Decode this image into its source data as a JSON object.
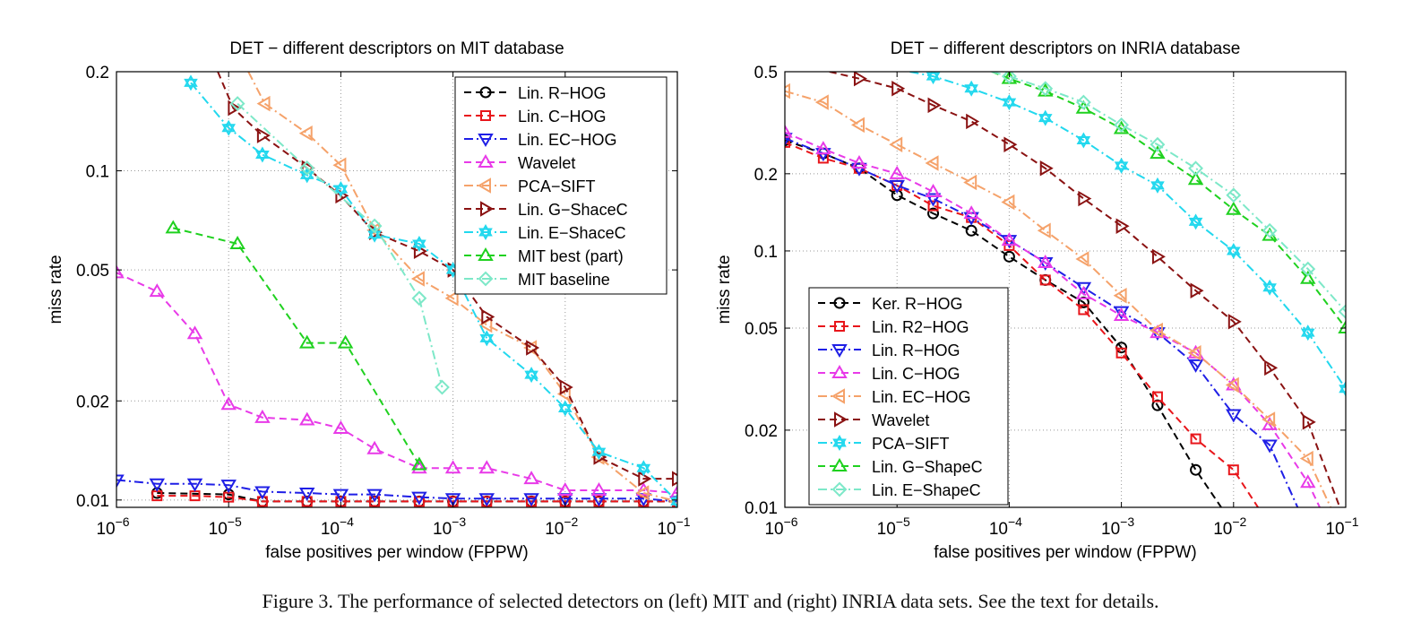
{
  "caption": "Figure 3. The performance of selected detectors on (left) MIT and (right) INRIA data sets. See the text for details.",
  "chart_data": [
    {
      "type": "line",
      "title": "DET − different descriptors on MIT database",
      "xlabel": "false positives per window (FPPW)",
      "ylabel": "miss rate",
      "xscale": "log",
      "yscale": "log",
      "xlim": [
        1e-06,
        0.1
      ],
      "ylim": [
        0.0095,
        0.2
      ],
      "xticks": [
        1e-06,
        1e-05,
        0.0001,
        0.001,
        0.01,
        0.1
      ],
      "xtick_exponents": [
        "−6",
        "−5",
        "−4",
        "−3",
        "−2",
        "−1"
      ],
      "yticks": [
        0.01,
        0.02,
        0.05,
        0.1,
        0.2
      ],
      "ytick_labels": [
        "0.01",
        "0.02",
        "0.05",
        "0.1",
        "0.2"
      ],
      "grid": true,
      "legend_position": "top-right",
      "series": [
        {
          "name": "Lin. R−HOG",
          "color": "#000000",
          "marker": "circle",
          "dash": "8,5",
          "x": [
            2.3e-06,
            1e-05,
            2e-05,
            5e-05,
            0.0001,
            0.0002,
            0.0005,
            0.001,
            0.002,
            0.005,
            0.01,
            0.02,
            0.05,
            0.1
          ],
          "y": [
            0.0105,
            0.0104,
            0.0099,
            0.0099,
            0.0099,
            0.0099,
            0.0099,
            0.0099,
            0.0099,
            0.0099,
            0.0099,
            0.0099,
            0.0099,
            0.0099
          ]
        },
        {
          "name": "Lin. C−HOG",
          "color": "#e8161b",
          "marker": "square",
          "dash": "8,5",
          "x": [
            2.3e-06,
            5e-06,
            1e-05,
            2e-05,
            5e-05,
            0.0001,
            0.0002,
            0.0005,
            0.001,
            0.002,
            0.005,
            0.01,
            0.02,
            0.05,
            0.1
          ],
          "y": [
            0.0103,
            0.0103,
            0.0102,
            0.0099,
            0.0099,
            0.0099,
            0.0099,
            0.0099,
            0.0099,
            0.0099,
            0.0099,
            0.0099,
            0.0099,
            0.0099,
            0.0099
          ]
        },
        {
          "name": "Lin. EC−HOG",
          "color": "#1f1fe6",
          "marker": "tri-down",
          "dash": "10,4,2,4",
          "x": [
            1e-06,
            2.3e-06,
            5e-06,
            1e-05,
            2e-05,
            5e-05,
            0.0001,
            0.0002,
            0.0005,
            0.001,
            0.002,
            0.005,
            0.01,
            0.02,
            0.05,
            0.1
          ],
          "y": [
            0.0115,
            0.0112,
            0.0112,
            0.0111,
            0.0106,
            0.0105,
            0.0104,
            0.0104,
            0.0102,
            0.0101,
            0.0101,
            0.0101,
            0.0101,
            0.0101,
            0.0101,
            0.0099
          ]
        },
        {
          "name": "Wavelet",
          "color": "#e83ae8",
          "marker": "tri-up",
          "dash": "8,5",
          "x": [
            1e-06,
            2.3e-06,
            5e-06,
            1e-05,
            2e-05,
            5e-05,
            0.0001,
            0.0002,
            0.0005,
            0.001,
            0.002,
            0.005,
            0.01,
            0.02,
            0.05,
            0.1
          ],
          "y": [
            0.049,
            0.043,
            0.032,
            0.0195,
            0.0178,
            0.0175,
            0.0165,
            0.0143,
            0.0125,
            0.0125,
            0.0125,
            0.0116,
            0.0107,
            0.0107,
            0.0107,
            0.0105
          ]
        },
        {
          "name": "PCA−SIFT",
          "color": "#f5a26a",
          "marker": "tri-left",
          "dash": "10,4,2,4",
          "x": [
            1.5e-05,
            2.1e-05,
            5e-05,
            0.0001,
            0.0002,
            0.0005,
            0.001,
            0.002,
            0.005,
            0.01,
            0.02,
            0.05,
            0.1
          ],
          "y": [
            0.2,
            0.16,
            0.13,
            0.104,
            0.066,
            0.047,
            0.041,
            0.034,
            0.029,
            0.021,
            0.0135,
            0.0105,
            0.0099
          ]
        },
        {
          "name": "Lin. G−ShaceC",
          "color": "#8a1212",
          "marker": "tri-right",
          "dash": "8,5",
          "x": [
            8e-06,
            1.1e-05,
            2e-05,
            5e-05,
            0.0001,
            0.0002,
            0.0005,
            0.001,
            0.002,
            0.005,
            0.01,
            0.02,
            0.05,
            0.1
          ],
          "y": [
            0.2,
            0.155,
            0.128,
            0.102,
            0.084,
            0.065,
            0.057,
            0.05,
            0.036,
            0.029,
            0.022,
            0.0135,
            0.0116,
            0.0116
          ]
        },
        {
          "name": "Lin. E−ShaceC",
          "color": "#22d8ee",
          "marker": "hexagram",
          "dash": "10,4,2,4",
          "x": [
            4.6e-06,
            1e-05,
            2e-05,
            5e-05,
            0.0001,
            0.0002,
            0.0005,
            0.001,
            0.002,
            0.005,
            0.01,
            0.02,
            0.05,
            0.1
          ],
          "y": [
            0.185,
            0.135,
            0.112,
            0.097,
            0.088,
            0.064,
            0.06,
            0.05,
            0.031,
            0.024,
            0.019,
            0.014,
            0.0125,
            0.0099
          ]
        },
        {
          "name": "MIT best (part)",
          "color": "#1fd11f",
          "marker": "tri-up",
          "dash": "8,5",
          "x": [
            3.2e-06,
            1.2e-05,
            5e-05,
            0.00011,
            0.0005
          ],
          "y": [
            0.067,
            0.06,
            0.03,
            0.03,
            0.0128
          ]
        },
        {
          "name": "MIT baseline",
          "color": "#7de8c8",
          "marker": "diamond",
          "dash": "10,4,2,4",
          "x": [
            1.2e-05,
            5e-05,
            0.0002,
            0.0005,
            0.0008
          ],
          "y": [
            0.16,
            0.102,
            0.068,
            0.041,
            0.022
          ]
        }
      ]
    },
    {
      "type": "line",
      "title": "DET − different descriptors on INRIA database",
      "xlabel": "false positives per window (FPPW)",
      "ylabel": "miss rate",
      "xscale": "log",
      "yscale": "log",
      "xlim": [
        1e-06,
        0.1
      ],
      "ylim": [
        0.01,
        0.5
      ],
      "xticks": [
        1e-06,
        1e-05,
        0.0001,
        0.001,
        0.01,
        0.1
      ],
      "xtick_exponents": [
        "−6",
        "−5",
        "−4",
        "−3",
        "−2",
        "−1"
      ],
      "yticks": [
        0.01,
        0.02,
        0.05,
        0.1,
        0.2,
        0.5
      ],
      "ytick_labels": [
        "0.01",
        "0.02",
        "0.05",
        "0.1",
        "0.2",
        "0.5"
      ],
      "grid": true,
      "legend_position": "bottom-left",
      "series": [
        {
          "name": "Ker. R−HOG",
          "color": "#000000",
          "marker": "circle",
          "dash": "8,5",
          "x": [
            1e-06,
            2.2e-06,
            4.6e-06,
            1e-05,
            2.1e-05,
            4.6e-05,
            0.0001,
            0.00021,
            0.00046,
            0.001,
            0.0021,
            0.0046,
            0.008
          ],
          "y": [
            0.27,
            0.24,
            0.21,
            0.165,
            0.14,
            0.12,
            0.095,
            0.077,
            0.063,
            0.042,
            0.025,
            0.014,
            0.0098
          ]
        },
        {
          "name": "Lin. R2−HOG",
          "color": "#e8161b",
          "marker": "square",
          "dash": "8,5",
          "x": [
            1e-06,
            2.2e-06,
            4.6e-06,
            1e-05,
            2.1e-05,
            4.6e-05,
            0.0001,
            0.00021,
            0.00046,
            0.001,
            0.0021,
            0.0046,
            0.01,
            0.017
          ],
          "y": [
            0.265,
            0.23,
            0.21,
            0.18,
            0.15,
            0.135,
            0.105,
            0.077,
            0.059,
            0.04,
            0.027,
            0.0185,
            0.014,
            0.0098
          ]
        },
        {
          "name": "Lin. R−HOG",
          "color": "#1f1fe6",
          "marker": "tri-down",
          "dash": "10,4,2,4",
          "x": [
            1e-06,
            2.2e-06,
            4.6e-06,
            1e-05,
            2.1e-05,
            4.6e-05,
            0.0001,
            0.00021,
            0.00046,
            0.001,
            0.0021,
            0.0046,
            0.01,
            0.021,
            0.038
          ],
          "y": [
            0.275,
            0.24,
            0.21,
            0.18,
            0.16,
            0.135,
            0.11,
            0.09,
            0.072,
            0.058,
            0.048,
            0.036,
            0.023,
            0.0175,
            0.0098
          ]
        },
        {
          "name": "Lin. C−HOG",
          "color": "#e83ae8",
          "marker": "tri-up",
          "dash": "8,5",
          "x": [
            1e-06,
            2.2e-06,
            4.6e-06,
            1e-05,
            2.1e-05,
            4.6e-05,
            0.0001,
            0.00021,
            0.00046,
            0.001,
            0.0021,
            0.0046,
            0.01,
            0.021,
            0.046,
            0.06
          ],
          "y": [
            0.29,
            0.25,
            0.22,
            0.2,
            0.17,
            0.14,
            0.11,
            0.09,
            0.068,
            0.056,
            0.048,
            0.04,
            0.03,
            0.021,
            0.0125,
            0.0098
          ]
        },
        {
          "name": "Lin. EC−HOG",
          "color": "#f5a26a",
          "marker": "tri-left",
          "dash": "10,4,2,4",
          "x": [
            1e-06,
            2.2e-06,
            4.6e-06,
            1e-05,
            2.1e-05,
            4.6e-05,
            0.0001,
            0.00021,
            0.00046,
            0.001,
            0.0021,
            0.0046,
            0.01,
            0.021,
            0.046,
            0.075
          ],
          "y": [
            0.42,
            0.38,
            0.31,
            0.26,
            0.22,
            0.185,
            0.155,
            0.12,
            0.093,
            0.067,
            0.049,
            0.04,
            0.03,
            0.022,
            0.0155,
            0.0098
          ]
        },
        {
          "name": "Wavelet",
          "color": "#8a1212",
          "marker": "tri-right",
          "dash": "8,5",
          "x": [
            2.5e-06,
            4.6e-06,
            1e-05,
            2.1e-05,
            4.6e-05,
            0.0001,
            0.00021,
            0.00046,
            0.001,
            0.0021,
            0.0046,
            0.01,
            0.021,
            0.046,
            0.09
          ],
          "y": [
            0.5,
            0.47,
            0.43,
            0.37,
            0.32,
            0.26,
            0.21,
            0.16,
            0.125,
            0.095,
            0.07,
            0.053,
            0.035,
            0.0215,
            0.0098
          ]
        },
        {
          "name": "PCA−SIFT",
          "color": "#22d8ee",
          "marker": "hexagram",
          "dash": "10,4,2,4",
          "x": [
            1.3e-05,
            2.1e-05,
            4.6e-05,
            0.0001,
            0.00021,
            0.00046,
            0.001,
            0.0021,
            0.0046,
            0.01,
            0.021,
            0.046,
            0.1
          ],
          "y": [
            0.5,
            0.48,
            0.43,
            0.38,
            0.33,
            0.27,
            0.215,
            0.18,
            0.13,
            0.1,
            0.072,
            0.048,
            0.029
          ]
        },
        {
          "name": "Lin. G−ShapeC",
          "color": "#1fd11f",
          "marker": "tri-up",
          "dash": "8,5",
          "x": [
            7e-05,
            0.0001,
            0.00021,
            0.00046,
            0.001,
            0.0021,
            0.0046,
            0.01,
            0.021,
            0.046,
            0.1
          ],
          "y": [
            0.5,
            0.47,
            0.42,
            0.36,
            0.3,
            0.24,
            0.19,
            0.145,
            0.115,
            0.078,
            0.05
          ]
        },
        {
          "name": "Lin. E−ShapeC",
          "color": "#7de8c8",
          "marker": "diamond",
          "dash": "10,4,2,4",
          "x": [
            7e-05,
            0.0001,
            0.00021,
            0.00046,
            0.001,
            0.0021,
            0.0046,
            0.01,
            0.021,
            0.046,
            0.1
          ],
          "y": [
            0.5,
            0.48,
            0.43,
            0.38,
            0.31,
            0.26,
            0.21,
            0.165,
            0.12,
            0.085,
            0.058
          ]
        }
      ]
    }
  ]
}
